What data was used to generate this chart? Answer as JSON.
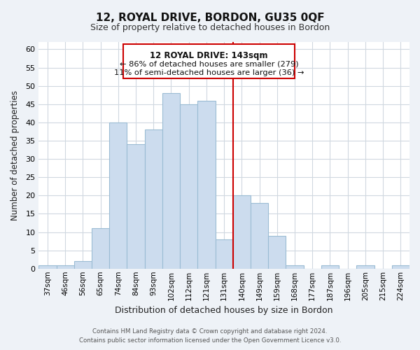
{
  "title_line1": "12, ROYAL DRIVE, BORDON, GU35 0QF",
  "title_line2": "Size of property relative to detached houses in Bordon",
  "xlabel": "Distribution of detached houses by size in Bordon",
  "ylabel": "Number of detached properties",
  "bar_labels": [
    "37sqm",
    "46sqm",
    "56sqm",
    "65sqm",
    "74sqm",
    "84sqm",
    "93sqm",
    "102sqm",
    "112sqm",
    "121sqm",
    "131sqm",
    "140sqm",
    "149sqm",
    "159sqm",
    "168sqm",
    "177sqm",
    "187sqm",
    "196sqm",
    "205sqm",
    "215sqm",
    "224sqm"
  ],
  "bar_values": [
    1,
    1,
    2,
    11,
    40,
    34,
    38,
    48,
    45,
    46,
    8,
    20,
    18,
    9,
    1,
    0,
    1,
    0,
    1,
    0,
    1
  ],
  "bar_color": "#ccdcee",
  "bar_edge_color": "#9bbcd4",
  "vline_color": "#cc0000",
  "annotation_title": "12 ROYAL DRIVE: 143sqm",
  "annotation_line1": "← 86% of detached houses are smaller (279)",
  "annotation_line2": "11% of semi-detached houses are larger (36) →",
  "annotation_box_color": "#ffffff",
  "annotation_box_edge": "#cc0000",
  "ylim": [
    0,
    62
  ],
  "yticks": [
    0,
    5,
    10,
    15,
    20,
    25,
    30,
    35,
    40,
    45,
    50,
    55,
    60
  ],
  "footer_line1": "Contains HM Land Registry data © Crown copyright and database right 2024.",
  "footer_line2": "Contains public sector information licensed under the Open Government Licence v3.0.",
  "bg_color": "#eef2f7",
  "plot_bg_color": "#ffffff",
  "grid_color": "#d0d8e0"
}
